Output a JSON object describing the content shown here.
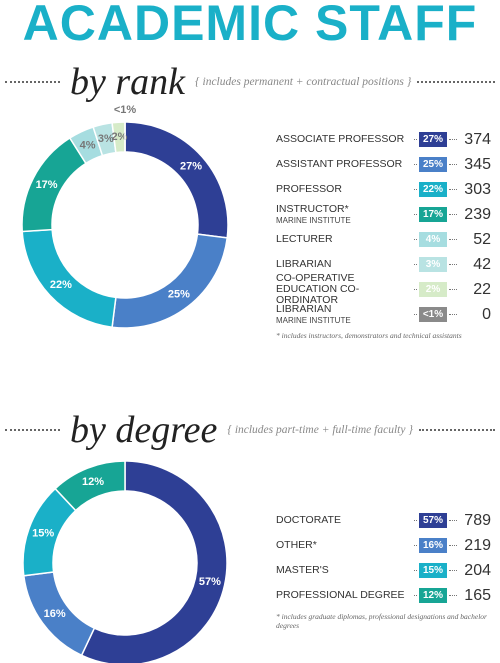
{
  "title": "ACADEMIC STAFF",
  "chart_data": [
    {
      "type": "donut",
      "subtitle": "by rank",
      "note": "{ includes permanent + contractual positions }",
      "categories": [
        "ASSOCIATE PROFESSOR",
        "ASSISTANT PROFESSOR",
        "PROFESSOR",
        "INSTRUCTOR*",
        "LECTURER",
        "LIBRARIAN",
        "CO-OPERATIVE EDUCATION CO-ORDINATOR",
        "LIBRARIAN"
      ],
      "sublabels": [
        null,
        null,
        null,
        "MARINE INSTITUTE",
        null,
        null,
        null,
        "MARINE INSTITUTE"
      ],
      "values": [
        27,
        25,
        22,
        17,
        4,
        3,
        2,
        0
      ],
      "value_labels": [
        "27%",
        "25%",
        "22%",
        "17%",
        "4%",
        "3%",
        "2%",
        "<1%"
      ],
      "counts": [
        374,
        345,
        303,
        239,
        52,
        42,
        22,
        0
      ],
      "colors": [
        "#2e3f95",
        "#4a80c8",
        "#1ab0c8",
        "#17a595",
        "#a6dde0",
        "#b9e3e3",
        "#d6ebc8",
        "#8a8a8a"
      ],
      "footnote": "* includes instructors, demonstrators and technical assistants"
    },
    {
      "type": "donut",
      "subtitle": "by degree",
      "note": "{ includes part-time + full-time faculty }",
      "categories": [
        "DOCTORATE",
        "OTHER*",
        "MASTER'S",
        "PROFESSIONAL DEGREE"
      ],
      "sublabels": [
        null,
        null,
        null,
        null
      ],
      "values": [
        57,
        16,
        15,
        12
      ],
      "value_labels": [
        "57%",
        "16%",
        "15%",
        "12%"
      ],
      "counts": [
        789,
        219,
        204,
        165
      ],
      "colors": [
        "#2e3f95",
        "#4a80c8",
        "#1ab0c8",
        "#17a595"
      ],
      "footnote": "* includes graduate diplomas, professional designations and bachelor degrees"
    }
  ]
}
